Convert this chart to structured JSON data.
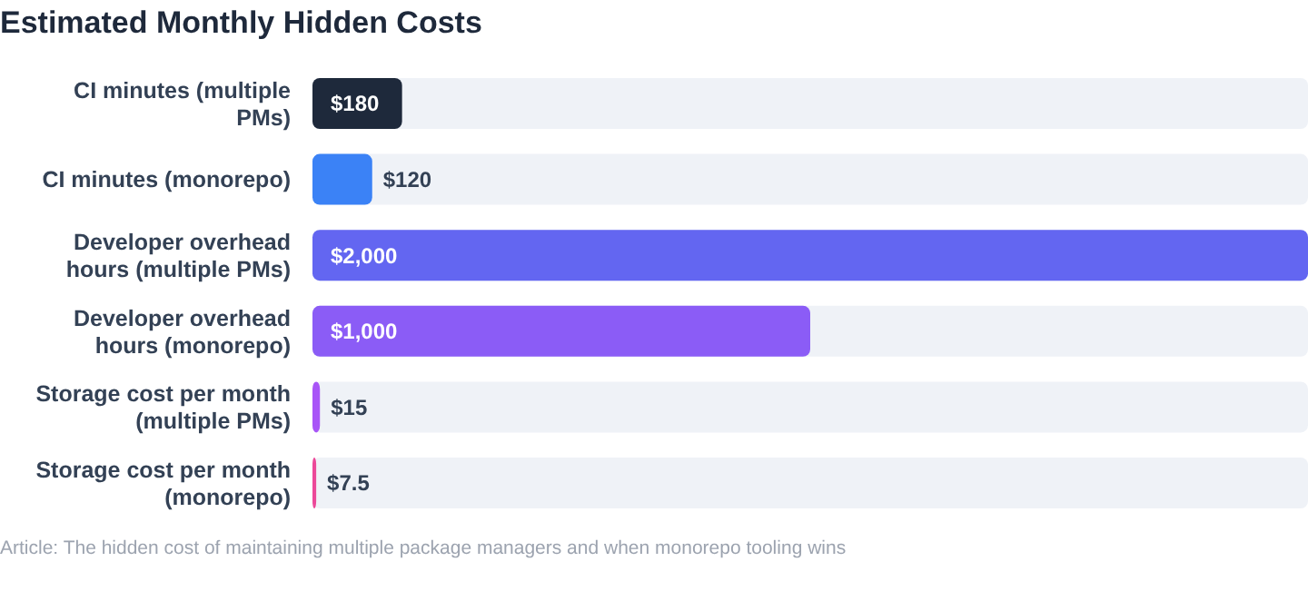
{
  "chart_data": {
    "type": "bar",
    "orientation": "horizontal",
    "title": "Estimated Monthly Hidden Costs",
    "categories": [
      "CI minutes (multiple PMs)",
      "CI minutes (monorepo)",
      "Developer overhead hours (multiple PMs)",
      "Developer overhead hours (monorepo)",
      "Storage cost per month (multiple PMs)",
      "Storage cost per month (monorepo)"
    ],
    "values": [
      180,
      120,
      2000,
      1000,
      15,
      7.5
    ],
    "value_labels": [
      "$180",
      "$120",
      "$2,000",
      "$1,000",
      "$15",
      "$7.5"
    ],
    "colors": [
      "#1e293b",
      "#3b82f6",
      "#6366f1",
      "#8b5cf6",
      "#a855f7",
      "#ec4899"
    ],
    "xlim": [
      0,
      2000
    ],
    "annotations": [
      "Article: The hidden cost of maintaining multiple package managers and when monorepo tooling wins"
    ]
  }
}
